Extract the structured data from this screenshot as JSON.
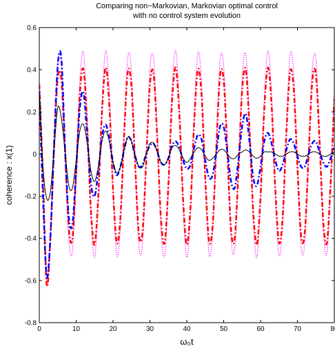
{
  "chart_data": {
    "type": "line",
    "title": [
      "Comparing non−Markovian, Markovian optimal control",
      "with no control system evolution"
    ],
    "ylabel": "coherence : x(1)",
    "xlabel": "ω₀t",
    "xlim": [
      0,
      80
    ],
    "xticks": [
      0,
      10,
      20,
      30,
      40,
      50,
      60,
      70,
      80
    ],
    "ylim": [
      -0.8,
      0.6
    ],
    "yticks": [
      -0.8,
      -0.6,
      -0.4,
      -0.2,
      0,
      0.2,
      0.4,
      0.6
    ],
    "grid": false,
    "x": [
      0,
      1,
      2,
      3,
      4,
      5,
      6,
      7,
      8,
      9,
      10,
      11,
      12,
      13,
      14,
      15,
      16,
      17,
      18,
      19,
      20,
      21,
      22,
      23,
      24,
      25,
      26,
      27,
      28,
      29,
      30,
      31,
      32,
      33,
      34,
      35,
      36,
      37,
      38,
      39,
      40,
      41,
      42,
      43,
      44,
      45,
      46,
      47,
      48,
      49,
      50,
      51,
      52,
      53,
      54,
      55,
      56,
      57,
      58,
      59,
      60,
      61,
      62,
      63,
      64,
      65,
      66,
      67,
      68,
      69,
      70,
      71,
      72,
      73,
      74,
      75,
      76,
      77,
      78,
      79,
      80
    ],
    "series": [
      {
        "color": "#ff00ff",
        "style": "dotted",
        "values": [
          0.3,
          -0.11,
          -0.6,
          -0.39,
          0.04,
          0.43,
          0.43,
          0.03,
          -0.4,
          -0.46,
          -0.1,
          0.35,
          0.48,
          0.16,
          -0.3,
          -0.49,
          -0.23,
          0.24,
          0.49,
          0.29,
          -0.18,
          -0.48,
          -0.34,
          0.12,
          0.46,
          0.39,
          -0.05,
          -0.44,
          -0.42,
          -0.02,
          0.4,
          0.45,
          0.09,
          -0.36,
          -0.48,
          -0.16,
          0.31,
          0.49,
          0.22,
          -0.25,
          -0.49,
          -0.28,
          0.19,
          0.48,
          0.34,
          -0.12,
          -0.47,
          -0.38,
          0.05,
          0.44,
          0.42,
          0.02,
          -0.4,
          -0.45,
          -0.09,
          0.36,
          0.47,
          0.15,
          -0.31,
          -0.49,
          -0.22,
          0.25,
          0.49,
          0.28,
          -0.19,
          -0.48,
          -0.33,
          0.12,
          0.47,
          0.38,
          -0.06,
          -0.44,
          -0.42,
          -0.01,
          0.4,
          0.45,
          0.08,
          -0.36,
          -0.47,
          -0.15,
          0.31
        ]
      },
      {
        "color": "#ff0000",
        "style": "dashdot",
        "values": [
          0.33,
          -0.11,
          -0.62,
          -0.4,
          0.03,
          0.36,
          0.35,
          0.01,
          -0.35,
          -0.4,
          -0.09,
          0.29,
          0.4,
          0.13,
          -0.27,
          -0.43,
          -0.2,
          0.2,
          0.41,
          0.23,
          -0.17,
          -0.42,
          -0.3,
          0.09,
          0.39,
          0.32,
          -0.05,
          -0.38,
          -0.37,
          -0.03,
          0.33,
          0.38,
          0.07,
          -0.31,
          -0.42,
          -0.15,
          0.25,
          0.41,
          0.18,
          -0.22,
          -0.43,
          -0.25,
          0.15,
          0.4,
          0.28,
          -0.11,
          -0.41,
          -0.34,
          0.03,
          0.37,
          0.35,
          0.01,
          -0.36,
          -0.4,
          -0.08,
          0.3,
          0.4,
          0.12,
          -0.27,
          -0.43,
          -0.2,
          0.21,
          0.41,
          0.23,
          -0.17,
          -0.42,
          -0.3,
          0.1,
          0.39,
          0.31,
          -0.06,
          -0.39,
          -0.37,
          -0.02,
          0.34,
          0.38,
          0.06,
          -0.32,
          -0.42,
          -0.14,
          0.26
        ]
      },
      {
        "color": "#0000ff",
        "style": "dashdot",
        "values": [
          0.3,
          -0.2,
          -0.58,
          -0.4,
          0.04,
          0.42,
          0.45,
          0.02,
          -0.3,
          -0.33,
          -0.07,
          0.22,
          0.29,
          0.08,
          -0.14,
          -0.2,
          -0.08,
          0.08,
          0.14,
          0.07,
          -0.04,
          -0.1,
          -0.06,
          0.02,
          0.08,
          0.06,
          -0.01,
          -0.06,
          -0.05,
          0,
          0.04,
          0.05,
          0.01,
          -0.04,
          -0.05,
          -0.02,
          0.04,
          0.06,
          0.03,
          -0.03,
          -0.07,
          -0.05,
          0.03,
          0.09,
          0.07,
          -0.03,
          -0.11,
          -0.1,
          0.01,
          0.13,
          0.13,
          0.01,
          -0.13,
          -0.16,
          -0.03,
          0.13,
          0.19,
          0.06,
          -0.11,
          -0.15,
          -0.06,
          0.06,
          0.1,
          0.05,
          -0.03,
          -0.08,
          -0.05,
          0.02,
          0.07,
          0.05,
          -0.01,
          -0.06,
          -0.06,
          0,
          0.05,
          0.06,
          0.01,
          -0.04,
          -0.06,
          -0.02,
          0.03
        ]
      },
      {
        "color": "#000000",
        "style": "solid",
        "values": [
          0.3,
          -0.06,
          -0.21,
          -0.18,
          0.02,
          0.22,
          0.17,
          0.01,
          -0.15,
          -0.16,
          -0.03,
          0.11,
          0.14,
          0.05,
          -0.08,
          -0.13,
          -0.06,
          0.06,
          0.11,
          0.06,
          -0.04,
          -0.09,
          -0.06,
          0.02,
          0.08,
          0.06,
          -0.01,
          -0.06,
          -0.06,
          0,
          0.05,
          0.05,
          0.01,
          -0.04,
          -0.05,
          -0.02,
          0.03,
          0.04,
          0.02,
          -0.02,
          -0.04,
          -0.02,
          0.01,
          0.03,
          0.02,
          -0.01,
          -0.03,
          -0.02,
          0,
          0.02,
          0.02,
          0,
          -0.02,
          -0.02,
          0,
          0.01,
          0.02,
          0.01,
          -0.01,
          -0.02,
          -0.01,
          0.01,
          0.01,
          0.01,
          0,
          -0.01,
          -0.01,
          0,
          0.01,
          0.01,
          0,
          -0.01,
          -0.01,
          0,
          0.01,
          0.01,
          0,
          -0.01,
          -0.01,
          0,
          0.01
        ]
      }
    ]
  }
}
